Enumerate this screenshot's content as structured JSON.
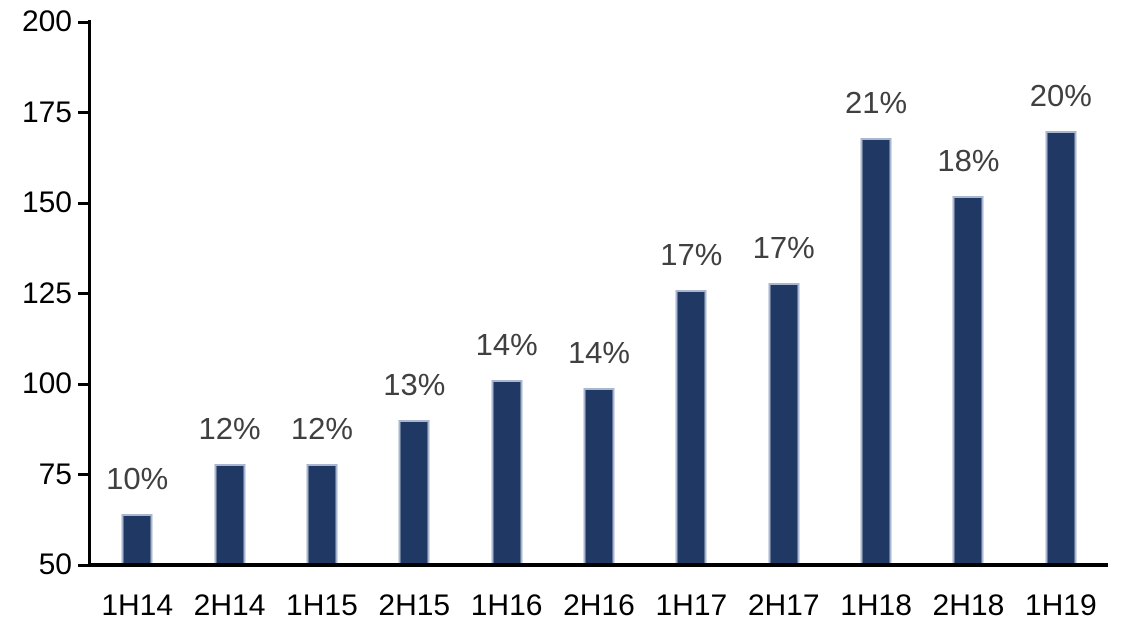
{
  "chart_data": {
    "type": "bar",
    "title": "",
    "xlabel": "",
    "ylabel": "",
    "categories": [
      "1H14",
      "2H14",
      "1H15",
      "2H15",
      "1H16",
      "2H16",
      "1H17",
      "2H17",
      "1H18",
      "2H18",
      "1H19"
    ],
    "values": [
      64,
      78,
      78,
      90,
      101,
      99,
      126,
      128,
      168,
      152,
      170
    ],
    "data_labels": [
      "10%",
      "12%",
      "12%",
      "13%",
      "14%",
      "14%",
      "17%",
      "17%",
      "21%",
      "18%",
      "20%"
    ],
    "y_ticks": [
      200,
      175,
      150,
      125,
      100,
      75,
      50
    ],
    "ylim": [
      50,
      200
    ],
    "grid": false,
    "legend_position": "none",
    "colors": {
      "bar_fill": "#1f3864",
      "bar_border": "#a9b6cd",
      "data_label": "#404040",
      "axis": "#000000",
      "tick_label": "#000000",
      "background": "#ffffff"
    }
  }
}
